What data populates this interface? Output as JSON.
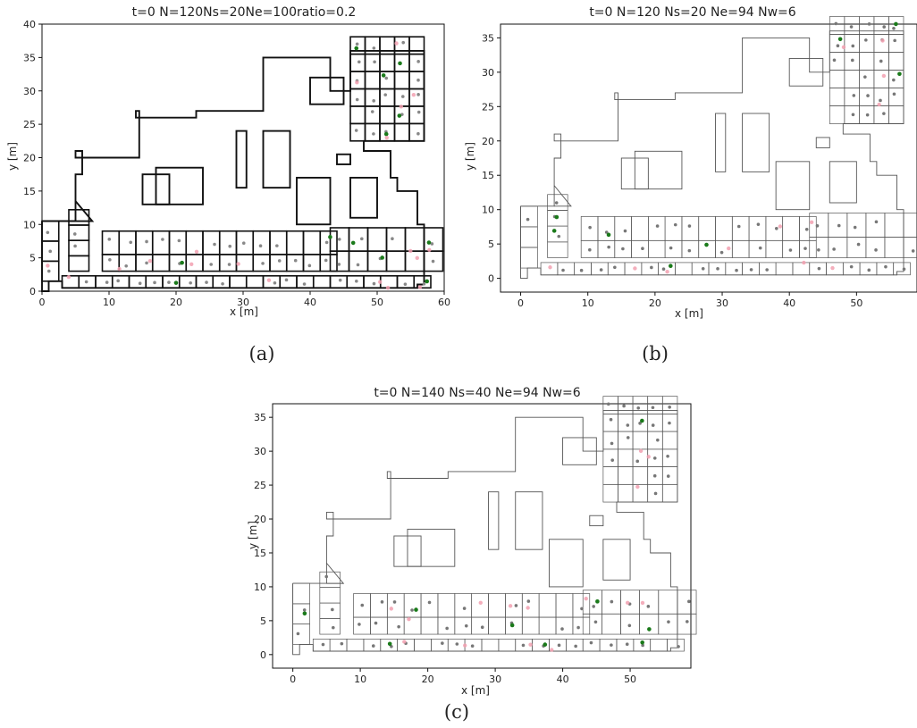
{
  "panels": [
    {
      "id": "a",
      "title": "t=0 N=120Ns=20Ne=100ratio=0.2",
      "xlabel": "x [m]",
      "ylabel": "y [m]",
      "caption": "(a)",
      "xticks": [
        0,
        10,
        20,
        30,
        40,
        50,
        60
      ],
      "yticks": [
        0,
        5,
        10,
        15,
        20,
        25,
        30,
        35,
        40
      ],
      "xlim": [
        0,
        60
      ],
      "ylim": [
        0,
        40
      ],
      "wall_style": "thick",
      "marker_colors": {
        "agent": "#888888",
        "special": "#1a7a1a",
        "exit": "#f2a0b0"
      }
    },
    {
      "id": "b",
      "title": "t=0 N=120 Ns=20 Ne=94 Nw=6",
      "xlabel": "x [m]",
      "ylabel": "y [m]",
      "caption": "(b)",
      "xticks": [
        0,
        10,
        20,
        30,
        40,
        50
      ],
      "yticks": [
        0,
        5,
        10,
        15,
        20,
        25,
        30,
        35
      ],
      "xlim": [
        -3,
        59
      ],
      "ylim": [
        -2,
        37
      ],
      "wall_style": "thin",
      "marker_colors": {
        "agent": "#777777",
        "special": "#1a7a1a",
        "exit": "#f2a0b0"
      }
    },
    {
      "id": "c",
      "title": "t=0 N=140 Ns=40 Ne=94 Nw=6",
      "xlabel": "x [m]",
      "ylabel": "y [m]",
      "caption": "(c)",
      "xticks": [
        0,
        10,
        20,
        30,
        40,
        50
      ],
      "yticks": [
        0,
        5,
        10,
        15,
        20,
        25,
        30,
        35
      ],
      "xlim": [
        -3,
        59
      ],
      "ylim": [
        -2,
        37
      ],
      "wall_style": "thin",
      "marker_colors": {
        "agent": "#777777",
        "special": "#1a7a1a",
        "exit": "#f2a0b0"
      }
    }
  ]
}
